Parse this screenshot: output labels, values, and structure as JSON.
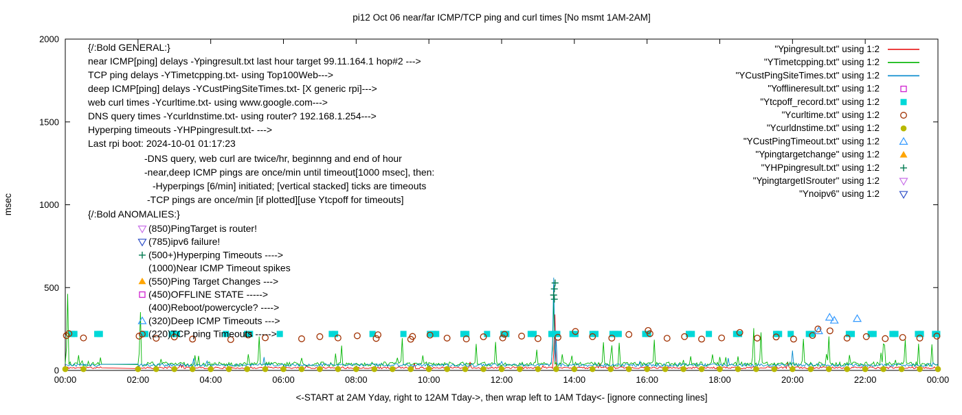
{
  "title": "pi12 Oct 06  near/far ICMP/TCP ping and curl times [No msmt 1AM-2AM]",
  "xlabel": "<-START at 2AM Yday, right to 12AM Tday->, then wrap left to 1AM Tday<- [ignore connecting lines]",
  "ylabel": "msec",
  "axes": {
    "x": {
      "min": 0,
      "max": 24,
      "tick_step_hours": 2,
      "tick_labels": [
        "00:00",
        "02:00",
        "04:00",
        "06:00",
        "08:00",
        "10:00",
        "12:00",
        "14:00",
        "16:00",
        "18:00",
        "20:00",
        "22:00",
        "00:00"
      ]
    },
    "y": {
      "min": 0,
      "max": 2000,
      "ticks": [
        0,
        500,
        1000,
        1500,
        2000
      ]
    }
  },
  "legend": [
    {
      "label": "\"Ypingresult.txt\" using 1:2",
      "sample": "line",
      "color": "#e60000"
    },
    {
      "label": "\"YTimetcpping.txt\" using 1:2",
      "sample": "line",
      "color": "#00b400"
    },
    {
      "label": "\"YCustPingSiteTimes.txt\" using 1:2",
      "sample": "line",
      "color": "#0088cc"
    },
    {
      "label": "\"Yofflineresult.txt\" using 1:2",
      "sample": "square-open",
      "color": "#d020d0"
    },
    {
      "label": "\"Ytcpoff_record.txt\" using 1:2",
      "sample": "square-filled",
      "color": "#00d8d8"
    },
    {
      "label": "\"Ycurltime.txt\" using 1:2",
      "sample": "circle-open",
      "color": "#a03000"
    },
    {
      "label": "\"Ycurldnstime.txt\" using 1:2",
      "sample": "circle-filled",
      "color": "#b8b800"
    },
    {
      "label": "\"YCustPingTimeout.txt\" using 1:2",
      "sample": "triangle-open",
      "color": "#3399ff"
    },
    {
      "label": "\"Ypingtargetchange\" using 1:2",
      "sample": "triangle-filled",
      "color": "#ffa500"
    },
    {
      "label": "\"YHPpingresult.txt\" using 1:2",
      "sample": "plus",
      "color": "#007a50"
    },
    {
      "label": "\"YpingtargetISrouter\" using 1:2",
      "sample": "triangle-down-open",
      "color": "#c86fe8"
    },
    {
      "label": "\"Ynoipv6\" using 1:2",
      "sample": "triangle-down-open",
      "color": "#3050c8"
    }
  ],
  "annotations": {
    "general": [
      "{/:Bold GENERAL:}",
      "near ICMP[ping] delays -Ypingresult.txt last hour target 99.11.164.1 hop#2 --->",
      "TCP ping delays -YTimetcpping.txt- using Top100Web--->",
      "deep ICMP[ping] delays -YCustPingSiteTimes.txt- [X generic rpi]--->",
      "web curl times -Ycurltime.txt- using www.google.com--->",
      "DNS query times -Ycurldnstime.txt- using router? 192.168.1.254--->",
      "Hyperping timeouts -YHPpingresult.txt- --->",
      "Last rpi boot: 2024-10-01 01:17:23"
    ],
    "notes": [
      "-DNS query, web curl are twice/hr, beginnng and end of hour",
      "-near,deep ICMP pings are once/min until timeout[1000 msec], then:",
      "-Hyperpings [6/min] initiated; [vertical stacked] ticks are timeouts",
      "-TCP pings are once/min [if plotted][use Ytcpoff for timeouts]"
    ],
    "anomalies_header": "{/:Bold ANOMALIES:}",
    "anomalies": [
      {
        "marker": "triangle-down-open",
        "color": "#c86fe8",
        "text": "(850)PingTarget is router!"
      },
      {
        "marker": "triangle-down-open",
        "color": "#3050c8",
        "text": "(785)ipv6 failure!"
      },
      {
        "marker": "plus",
        "color": "#007a50",
        "text": "(500+)Hyperping Timeouts ---->"
      },
      {
        "marker": null,
        "color": null,
        "text": "(1000)Near ICMP Timeout spikes"
      },
      {
        "marker": "triangle-filled",
        "color": "#ffa500",
        "text": "(550)Ping Target Changes --->"
      },
      {
        "marker": "square-open",
        "color": "#d020d0",
        "text": "(450)OFFLINE STATE ----->"
      },
      {
        "marker": null,
        "color": null,
        "text": "(400)Reboot/powercycle? ---->"
      },
      {
        "marker": "triangle-open",
        "color": "#3399ff",
        "text": "(320)Deep ICMP Timeouts --->"
      },
      {
        "marker": "circle-open",
        "color": "#a03000",
        "text": "(220)TCP ping Timeouts ----->"
      }
    ]
  },
  "chart_data": {
    "type": "line",
    "x_unit": "hour_of_day",
    "y_unit": "msec",
    "xlim": [
      0,
      24
    ],
    "ylim": [
      0,
      2000
    ],
    "grid": false,
    "legend_position": "top-right-inside",
    "no_measurement_window_hours": [
      1,
      2
    ],
    "series": [
      {
        "name": "Ypingresult.txt",
        "type": "line",
        "color": "#e60000",
        "baseline": 16,
        "noise": 6,
        "spike_prob": 0.01,
        "spike_scale": 50,
        "seed": 11,
        "spikes": [
          [
            13.46,
            338
          ]
        ]
      },
      {
        "name": "YTimetcpping.txt",
        "type": "line",
        "color": "#00b400",
        "baseline": 38,
        "noise": 13,
        "spike_prob": 0.05,
        "spike_scale": 170,
        "seed": 22,
        "spikes": [
          [
            0.08,
            462
          ],
          [
            2.07,
            352
          ],
          [
            5.35,
            205
          ],
          [
            7.6,
            150
          ],
          [
            9.25,
            195
          ],
          [
            11.3,
            160
          ],
          [
            13.42,
            435
          ],
          [
            14.8,
            170
          ],
          [
            16.2,
            185
          ],
          [
            18.92,
            255
          ],
          [
            19.15,
            230
          ],
          [
            20.3,
            190
          ],
          [
            21.0,
            205
          ],
          [
            22.5,
            160
          ],
          [
            23.1,
            185
          ]
        ]
      },
      {
        "name": "YCustPingSiteTimes.txt",
        "type": "line",
        "color": "#0088cc",
        "baseline": 32,
        "noise": 9,
        "spike_prob": 0.012,
        "spike_scale": 60,
        "seed": 33,
        "spikes": [
          [
            13.45,
            560
          ],
          [
            13.5,
            185
          ],
          [
            20.0,
            120
          ]
        ]
      },
      {
        "name": "Yofflineresult.txt",
        "type": "scatter",
        "marker": "square-open",
        "color": "#d020d0",
        "points": []
      },
      {
        "name": "Ytcpoff_record.txt",
        "type": "scatter",
        "marker": "square-filled",
        "color": "#00d8d8",
        "y": 220,
        "x": [
          0.18,
          0.25,
          0.88,
          0.95,
          2.13,
          2.2,
          2.93,
          3.0,
          3.07,
          4.42,
          5.0,
          5.08,
          5.9,
          7.33,
          7.42,
          8.45,
          9.3,
          10.03,
          10.12,
          10.2,
          10.95,
          11.03,
          11.6,
          12.05,
          12.13,
          12.8,
          12.88,
          13.37,
          13.45,
          13.53,
          13.95,
          14.03,
          14.5,
          14.58,
          15.05,
          15.13,
          15.22,
          15.95,
          16.03,
          17.15,
          17.23,
          17.7,
          18.45,
          18.53,
          19.55,
          19.63,
          19.95,
          20.45,
          20.53,
          21.55,
          21.63,
          22.15,
          22.23,
          22.75,
          22.83,
          23.45,
          23.53,
          23.92,
          23.98
        ]
      },
      {
        "name": "Ycurltime.txt",
        "type": "scatter",
        "marker": "circle-open",
        "color": "#a03000",
        "points": [
          [
            0.03,
            210
          ],
          [
            0.1,
            222
          ],
          [
            0.5,
            196
          ],
          [
            2.03,
            207
          ],
          [
            2.5,
            194
          ],
          [
            3.0,
            202
          ],
          [
            3.5,
            189
          ],
          [
            4.55,
            186
          ],
          [
            5.03,
            214
          ],
          [
            5.5,
            197
          ],
          [
            6.5,
            191
          ],
          [
            7.0,
            204
          ],
          [
            7.5,
            196
          ],
          [
            8.03,
            209
          ],
          [
            8.55,
            193
          ],
          [
            8.6,
            215
          ],
          [
            9.5,
            188
          ],
          [
            9.55,
            205
          ],
          [
            10.03,
            213
          ],
          [
            10.5,
            195
          ],
          [
            11.03,
            190
          ],
          [
            11.5,
            203
          ],
          [
            12.03,
            196
          ],
          [
            12.08,
            218
          ],
          [
            12.55,
            207
          ],
          [
            13.0,
            192
          ],
          [
            13.55,
            200
          ],
          [
            14.03,
            235
          ],
          [
            14.5,
            204
          ],
          [
            15.03,
            195
          ],
          [
            15.5,
            217
          ],
          [
            16.03,
            241
          ],
          [
            16.08,
            222
          ],
          [
            16.55,
            194
          ],
          [
            17.03,
            204
          ],
          [
            17.5,
            189
          ],
          [
            18.05,
            196
          ],
          [
            18.55,
            229
          ],
          [
            19.03,
            195
          ],
          [
            19.55,
            202
          ],
          [
            20.03,
            189
          ],
          [
            20.55,
            211
          ],
          [
            20.7,
            250
          ],
          [
            21.03,
            239
          ],
          [
            21.5,
            195
          ],
          [
            22.03,
            204
          ],
          [
            22.55,
            192
          ],
          [
            23.03,
            199
          ],
          [
            23.5,
            195
          ],
          [
            23.97,
            207
          ]
        ]
      },
      {
        "name": "Ycurldnstime.txt",
        "type": "scatter",
        "marker": "circle-filled",
        "color": "#b8b800",
        "uniform": {
          "start": 0,
          "end": 24,
          "step": 0.5,
          "skip_window": [
            1,
            2
          ],
          "y": 8
        }
      },
      {
        "name": "YCustPingTimeout.txt",
        "type": "scatter",
        "marker": "triangle-open",
        "color": "#3399ff",
        "points": [
          [
            20.72,
            238
          ],
          [
            21.02,
            320
          ],
          [
            21.15,
            302
          ],
          [
            21.78,
            312
          ]
        ]
      },
      {
        "name": "Ypingtargetchange",
        "type": "scatter",
        "marker": "triangle-filled",
        "color": "#ffa500",
        "points": []
      },
      {
        "name": "YHPpingresult.txt",
        "type": "scatter",
        "marker": "plus",
        "color": "#007a50",
        "points": [
          [
            13.43,
            455
          ],
          [
            13.45,
            492
          ],
          [
            13.47,
            528
          ],
          [
            13.45,
            430
          ]
        ]
      },
      {
        "name": "YpingtargetISrouter",
        "type": "scatter",
        "marker": "triangle-down-open",
        "color": "#c86fe8",
        "points": []
      },
      {
        "name": "Ynoipv6",
        "type": "scatter",
        "marker": "triangle-down-open",
        "color": "#3050c8",
        "points": []
      }
    ]
  }
}
